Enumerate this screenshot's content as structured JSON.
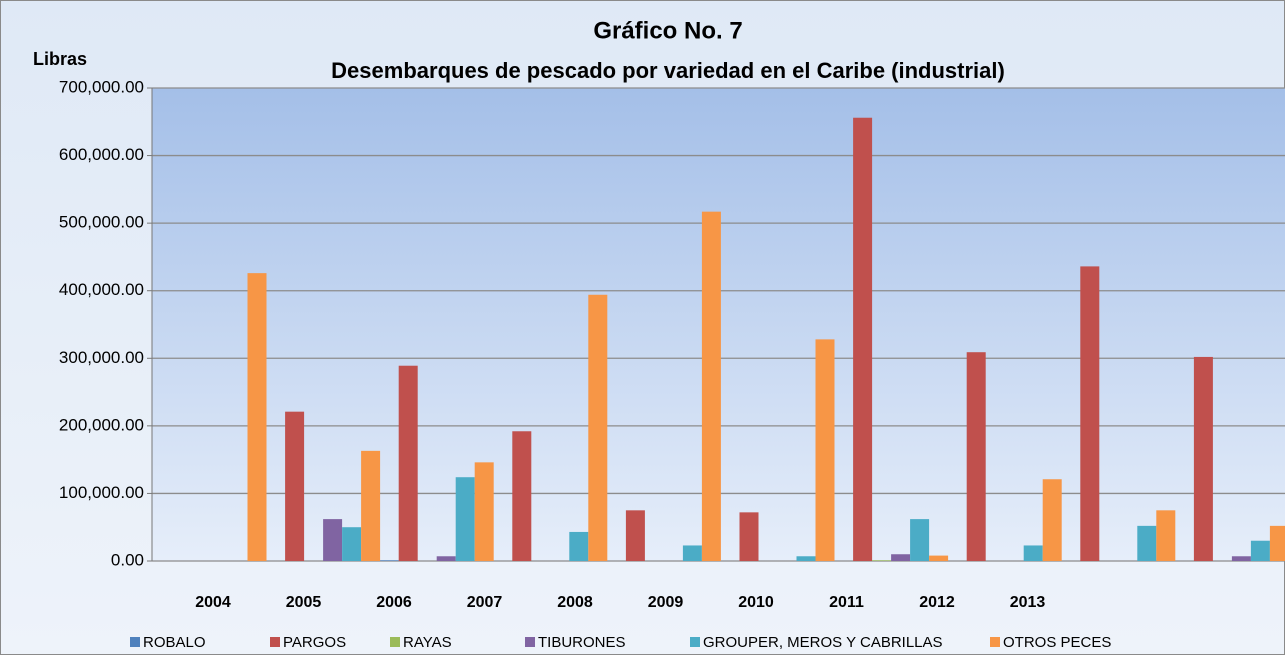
{
  "chart_data": {
    "type": "bar",
    "title": "Gráfico No. 7",
    "subtitle": "Desembarques de pescado por variedad en el Caribe (industrial)",
    "y_label": "Libras",
    "categories": [
      "2004",
      "2005",
      "2006",
      "2007",
      "2008",
      "2009",
      "2010",
      "2011",
      "2012",
      "2013"
    ],
    "series": [
      {
        "name": "ROBALO",
        "color": "#4f81bd",
        "values": [
          0,
          0,
          1000,
          0,
          0,
          0,
          0,
          0,
          0,
          0
        ]
      },
      {
        "name": "PARGOS",
        "color": "#c0504d",
        "values": [
          0,
          221000,
          289000,
          192000,
          75000,
          72000,
          656000,
          309000,
          436000,
          302000
        ]
      },
      {
        "name": "RAYAS",
        "color": "#9bbb59",
        "values": [
          0,
          0,
          0,
          0,
          0,
          0,
          1000,
          0,
          0,
          0
        ]
      },
      {
        "name": "TIBURONES",
        "color": "#8064a2",
        "values": [
          0,
          62000,
          7000,
          0,
          0,
          0,
          10000,
          0,
          0,
          7000
        ]
      },
      {
        "name": "GROUPER, MEROS Y CABRILLAS",
        "color": "#4bacc6",
        "values": [
          0,
          50000,
          124000,
          43000,
          23000,
          7000,
          62000,
          23000,
          52000,
          30000
        ]
      },
      {
        "name": "OTROS PECES",
        "color": "#f79646",
        "values": [
          426000,
          163000,
          146000,
          394000,
          517000,
          328000,
          8000,
          121000,
          75000,
          52000
        ]
      }
    ],
    "ylim": [
      0,
      700000
    ],
    "yticks": [
      {
        "value": 0,
        "label": "0.00"
      },
      {
        "value": 100000,
        "label": "100,000.00"
      },
      {
        "value": 200000,
        "label": "200,000.00"
      },
      {
        "value": 300000,
        "label": "300,000.00"
      },
      {
        "value": 400000,
        "label": "400,000.00"
      },
      {
        "value": 500000,
        "label": "500,000.00"
      },
      {
        "value": 600000,
        "label": "600,000.00"
      },
      {
        "value": 700000,
        "label": "700,000.00"
      }
    ],
    "grid": true,
    "legend": "bottom"
  }
}
